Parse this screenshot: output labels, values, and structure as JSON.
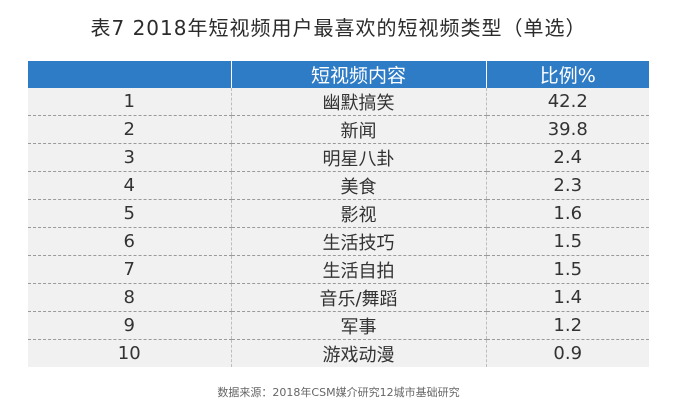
{
  "title": "表7  2018年短视频用户最喜欢的短视频类型（单选）",
  "table": {
    "headers": [
      "",
      "短视频内容",
      "比例%"
    ],
    "rows": [
      {
        "rank": "1",
        "content": "幽默搞笑",
        "percent": "42.2"
      },
      {
        "rank": "2",
        "content": "新闻",
        "percent": "39.8"
      },
      {
        "rank": "3",
        "content": "明星八卦",
        "percent": "2.4"
      },
      {
        "rank": "4",
        "content": "美食",
        "percent": "2.3"
      },
      {
        "rank": "5",
        "content": "影视",
        "percent": "1.6"
      },
      {
        "rank": "6",
        "content": "生活技巧",
        "percent": "1.5"
      },
      {
        "rank": "7",
        "content": "生活自拍",
        "percent": "1.5"
      },
      {
        "rank": "8",
        "content": "音乐/舞蹈",
        "percent": "1.4"
      },
      {
        "rank": "9",
        "content": "军事",
        "percent": "1.2"
      },
      {
        "rank": "10",
        "content": "游戏动漫",
        "percent": "0.9"
      }
    ]
  },
  "source": "数据来源：2018年CSM媒介研究12城市基础研究",
  "colors": {
    "header_bg": "#2f7cc6",
    "row_bg": "#f1f1f1"
  }
}
